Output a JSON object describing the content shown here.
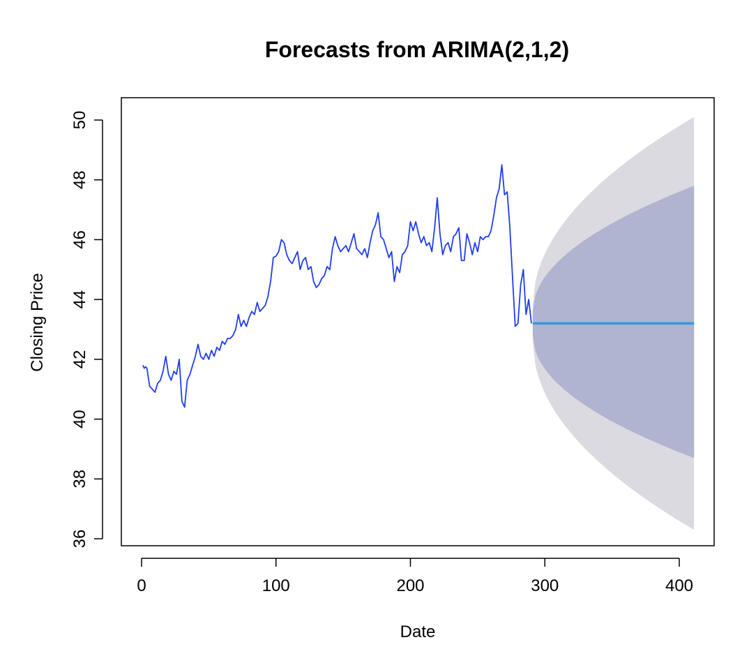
{
  "chart_data": {
    "type": "line",
    "title": "Forecasts from ARIMA(2,1,2)",
    "xlabel": "Date",
    "ylabel": "Closing Price",
    "xlim": [
      0,
      410
    ],
    "ylim": [
      36,
      50
    ],
    "x_ticks": [
      0,
      100,
      200,
      300,
      400
    ],
    "y_ticks": [
      36,
      38,
      40,
      42,
      44,
      46,
      48,
      50
    ],
    "grid": false,
    "legend": "none",
    "colors": {
      "observed": "#1f3df0",
      "forecast": "#3399e0",
      "band_80": "#b0b4d0",
      "band_95": "#dadae0"
    },
    "observed_points": [
      [
        1,
        41.8
      ],
      [
        2,
        41.7
      ],
      [
        3,
        41.75
      ],
      [
        4,
        41.7
      ],
      [
        5,
        41.4
      ],
      [
        6,
        41.1
      ],
      [
        8,
        41.0
      ],
      [
        10,
        40.9
      ],
      [
        12,
        41.2
      ],
      [
        14,
        41.3
      ],
      [
        16,
        41.6
      ],
      [
        18,
        42.1
      ],
      [
        20,
        41.5
      ],
      [
        22,
        41.3
      ],
      [
        24,
        41.6
      ],
      [
        26,
        41.5
      ],
      [
        28,
        42.0
      ],
      [
        30,
        40.6
      ],
      [
        32,
        40.4
      ],
      [
        34,
        41.3
      ],
      [
        36,
        41.5
      ],
      [
        38,
        41.8
      ],
      [
        40,
        42.1
      ],
      [
        42,
        42.5
      ],
      [
        44,
        42.1
      ],
      [
        46,
        42.0
      ],
      [
        48,
        42.2
      ],
      [
        50,
        42.0
      ],
      [
        52,
        42.3
      ],
      [
        54,
        42.1
      ],
      [
        56,
        42.4
      ],
      [
        58,
        42.3
      ],
      [
        60,
        42.6
      ],
      [
        62,
        42.5
      ],
      [
        64,
        42.7
      ],
      [
        66,
        42.7
      ],
      [
        68,
        42.8
      ],
      [
        70,
        43.0
      ],
      [
        72,
        43.5
      ],
      [
        74,
        43.1
      ],
      [
        76,
        43.3
      ],
      [
        78,
        43.1
      ],
      [
        80,
        43.4
      ],
      [
        82,
        43.6
      ],
      [
        84,
        43.5
      ],
      [
        86,
        43.9
      ],
      [
        88,
        43.6
      ],
      [
        90,
        43.7
      ],
      [
        92,
        43.8
      ],
      [
        94,
        44.1
      ],
      [
        96,
        44.6
      ],
      [
        98,
        45.4
      ],
      [
        100,
        45.45
      ],
      [
        102,
        45.6
      ],
      [
        104,
        46.0
      ],
      [
        106,
        45.9
      ],
      [
        108,
        45.5
      ],
      [
        110,
        45.3
      ],
      [
        112,
        45.2
      ],
      [
        114,
        45.4
      ],
      [
        116,
        45.6
      ],
      [
        118,
        45.0
      ],
      [
        120,
        45.3
      ],
      [
        122,
        45.4
      ],
      [
        124,
        45.0
      ],
      [
        126,
        45.1
      ],
      [
        128,
        44.6
      ],
      [
        130,
        44.4
      ],
      [
        132,
        44.5
      ],
      [
        134,
        44.7
      ],
      [
        136,
        44.8
      ],
      [
        138,
        45.1
      ],
      [
        140,
        45.0
      ],
      [
        142,
        45.7
      ],
      [
        144,
        46.1
      ],
      [
        146,
        45.8
      ],
      [
        148,
        45.6
      ],
      [
        150,
        45.7
      ],
      [
        152,
        45.8
      ],
      [
        154,
        45.6
      ],
      [
        156,
        45.9
      ],
      [
        158,
        46.2
      ],
      [
        160,
        45.7
      ],
      [
        162,
        45.6
      ],
      [
        164,
        45.5
      ],
      [
        166,
        45.7
      ],
      [
        168,
        45.4
      ],
      [
        170,
        45.9
      ],
      [
        172,
        46.3
      ],
      [
        174,
        46.5
      ],
      [
        176,
        46.9
      ],
      [
        178,
        46.1
      ],
      [
        180,
        46.0
      ],
      [
        182,
        45.7
      ],
      [
        184,
        45.4
      ],
      [
        186,
        45.6
      ],
      [
        188,
        44.6
      ],
      [
        190,
        45.1
      ],
      [
        192,
        44.9
      ],
      [
        194,
        45.5
      ],
      [
        196,
        45.6
      ],
      [
        198,
        45.8
      ],
      [
        200,
        46.6
      ],
      [
        202,
        46.3
      ],
      [
        204,
        46.6
      ],
      [
        206,
        46.2
      ],
      [
        208,
        45.9
      ],
      [
        210,
        46.1
      ],
      [
        212,
        45.8
      ],
      [
        214,
        45.9
      ],
      [
        216,
        45.6
      ],
      [
        218,
        46.4
      ],
      [
        220,
        47.4
      ],
      [
        222,
        46.2
      ],
      [
        224,
        45.5
      ],
      [
        226,
        45.8
      ],
      [
        228,
        45.9
      ],
      [
        230,
        45.6
      ],
      [
        232,
        46.1
      ],
      [
        234,
        46.2
      ],
      [
        236,
        46.4
      ],
      [
        238,
        45.3
      ],
      [
        240,
        45.3
      ],
      [
        242,
        46.2
      ],
      [
        244,
        45.9
      ],
      [
        246,
        45.5
      ],
      [
        248,
        45.9
      ],
      [
        250,
        45.6
      ],
      [
        252,
        46.1
      ],
      [
        254,
        46.0
      ],
      [
        256,
        46.1
      ],
      [
        258,
        46.1
      ],
      [
        260,
        46.3
      ],
      [
        262,
        46.8
      ],
      [
        264,
        47.4
      ],
      [
        266,
        47.7
      ],
      [
        268,
        48.5
      ],
      [
        270,
        47.5
      ],
      [
        272,
        47.6
      ],
      [
        274,
        46.4
      ],
      [
        276,
        44.7
      ],
      [
        278,
        43.1
      ],
      [
        280,
        43.2
      ],
      [
        282,
        44.5
      ],
      [
        284,
        45.0
      ],
      [
        286,
        43.5
      ],
      [
        288,
        44.0
      ],
      [
        290,
        43.2
      ]
    ],
    "forecast": {
      "x": [
        291,
        411
      ],
      "y": [
        43.2,
        43.2
      ]
    },
    "band_95": {
      "x": [
        291,
        411
      ],
      "upper": [
        43.8,
        50.1
      ],
      "lower": [
        42.6,
        36.3
      ]
    },
    "band_80": {
      "x": [
        291,
        411
      ],
      "upper": [
        43.6,
        47.8
      ],
      "lower": [
        42.8,
        38.7
      ]
    }
  }
}
